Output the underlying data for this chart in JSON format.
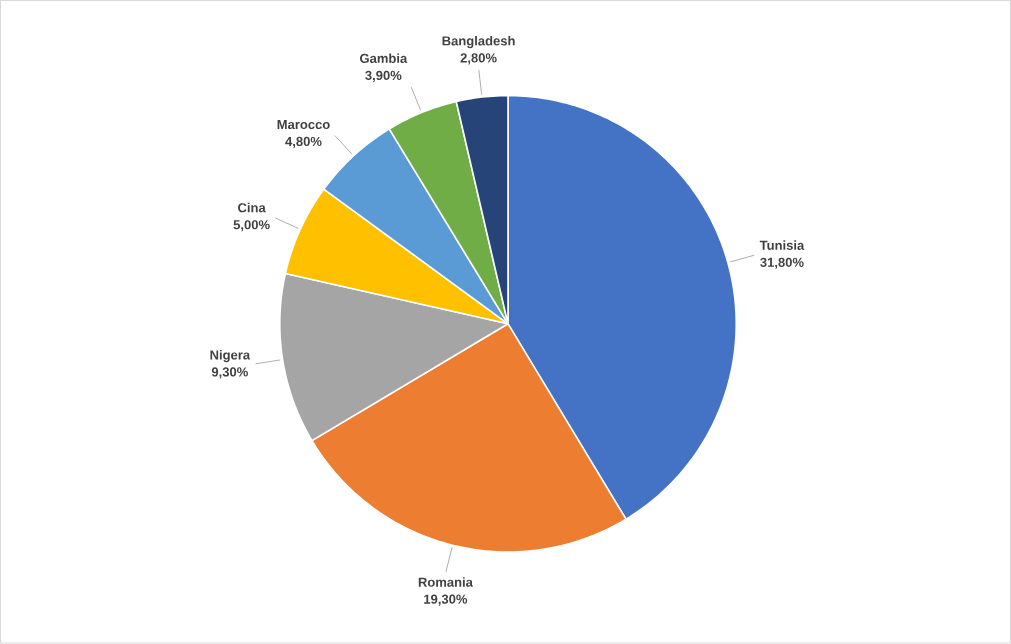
{
  "chart_data": {
    "type": "pie",
    "categories": [
      "Tunisia",
      "Romania",
      "Nigera",
      "Cina",
      "Marocco",
      "Gambia",
      "Bangladesh"
    ],
    "values": [
      31.8,
      19.3,
      9.3,
      5.0,
      4.8,
      3.9,
      2.8
    ],
    "colors": [
      "#4472c4",
      "#ed7d31",
      "#a5a5a5",
      "#ffc000",
      "#5b9bd5",
      "#70ad47",
      "#264478"
    ],
    "value_labels": [
      "31,80%",
      "19,30%",
      "9,30%",
      "5,00%",
      "4,80%",
      "3,90%",
      "2,80%"
    ]
  }
}
